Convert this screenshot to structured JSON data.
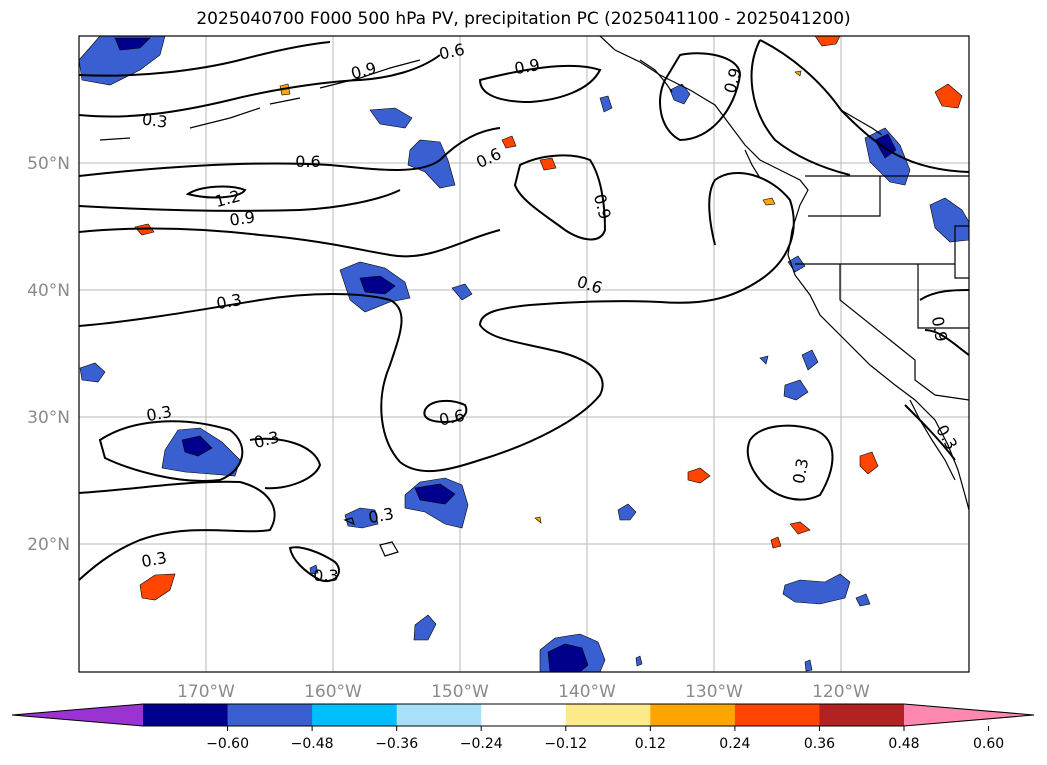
{
  "title": "2025040700 F000 500 hPa PV, precipitation PC (2025041100 - 2025041200)",
  "lat_labels": [
    "50°N",
    "40°N",
    "30°N",
    "20°N"
  ],
  "lon_labels": [
    "170°W",
    "160°W",
    "150°W",
    "140°W",
    "130°W",
    "120°W"
  ],
  "contour_labels": [
    "0.6",
    "0.9",
    "0.9",
    "0.9",
    "0.3",
    "0.6",
    "0.6",
    "1.2",
    "0.9",
    "0.9",
    "0.3",
    "0.6",
    "0.9",
    "0.3",
    "0.6",
    "0.3",
    "0.3",
    "0.3",
    "0.3",
    "0.3",
    "0.3"
  ],
  "colorbar": {
    "colors": [
      "#9b32d2",
      "#00008c",
      "#3a5fd0",
      "#00bfff",
      "#a8e0f8",
      "#ffffff",
      "#fce98a",
      "#ffa500",
      "#ff4500",
      "#b22222",
      "#ff88b0"
    ],
    "ticks": [
      "−0.60",
      "−0.48",
      "−0.36",
      "−0.24",
      "−0.12",
      "0.12",
      "0.24",
      "0.36",
      "0.48",
      "0.60"
    ]
  }
}
